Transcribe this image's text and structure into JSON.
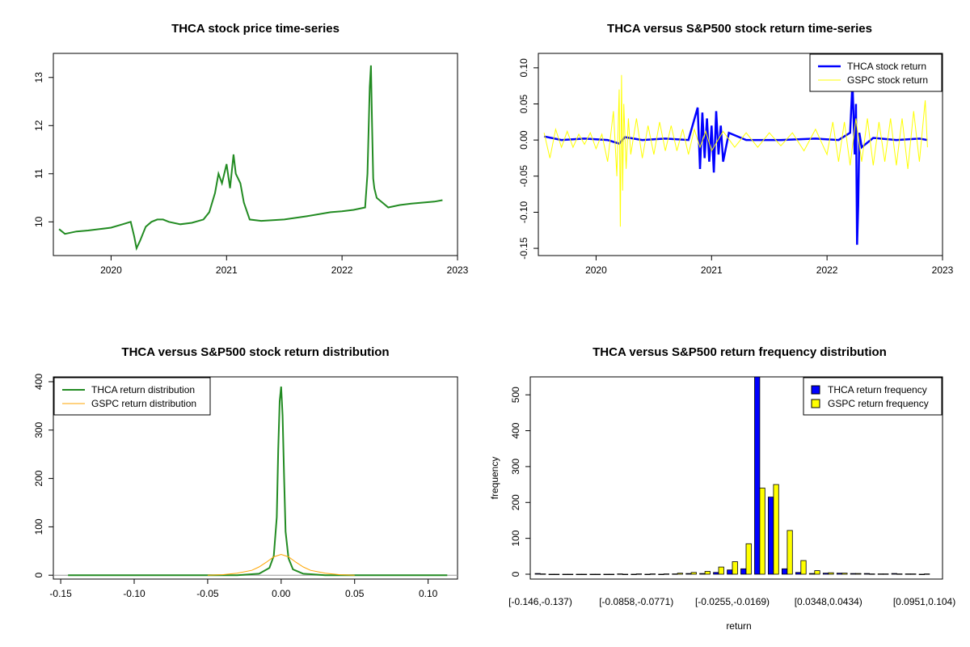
{
  "chart_data": [
    {
      "type": "line",
      "title": "THCA stock price time-series",
      "xlabel": "",
      "ylabel": "",
      "x_ticks": [
        "2020",
        "2021",
        "2022",
        "2023"
      ],
      "y_ticks": [
        "10",
        "11",
        "12",
        "13"
      ],
      "xlim": [
        2019.5,
        2023.0
      ],
      "ylim": [
        9.3,
        13.5
      ],
      "series": [
        {
          "color": "#228B22",
          "x": [
            2019.55,
            2019.6,
            2019.7,
            2019.8,
            2019.9,
            2020.0,
            2020.1,
            2020.17,
            2020.2,
            2020.22,
            2020.25,
            2020.3,
            2020.35,
            2020.4,
            2020.45,
            2020.5,
            2020.6,
            2020.7,
            2020.8,
            2020.85,
            2020.9,
            2020.93,
            2020.96,
            2021.0,
            2021.03,
            2021.06,
            2021.08,
            2021.12,
            2021.15,
            2021.2,
            2021.3,
            2021.5,
            2021.7,
            2021.9,
            2022.0,
            2022.1,
            2022.2,
            2022.22,
            2022.24,
            2022.25,
            2022.26,
            2022.27,
            2022.28,
            2022.3,
            2022.35,
            2022.4,
            2022.5,
            2022.6,
            2022.7,
            2022.8,
            2022.87
          ],
          "y": [
            9.85,
            9.75,
            9.8,
            9.82,
            9.85,
            9.88,
            9.95,
            10.0,
            9.7,
            9.45,
            9.6,
            9.9,
            10.0,
            10.05,
            10.05,
            10.0,
            9.95,
            9.98,
            10.05,
            10.2,
            10.6,
            11.0,
            10.8,
            11.2,
            10.7,
            11.4,
            11.0,
            10.8,
            10.4,
            10.05,
            10.02,
            10.05,
            10.12,
            10.2,
            10.22,
            10.25,
            10.3,
            11.0,
            12.8,
            13.25,
            12.0,
            10.9,
            10.7,
            10.5,
            10.4,
            10.3,
            10.35,
            10.38,
            10.4,
            10.42,
            10.45
          ]
        }
      ]
    },
    {
      "type": "line",
      "title": "THCA versus S&P500 stock return time-series",
      "xlabel": "",
      "ylabel": "",
      "x_ticks": [
        "2020",
        "2021",
        "2022",
        "2023"
      ],
      "y_ticks": [
        "-0.15",
        "-0.10",
        "-0.05",
        "0.00",
        "0.05",
        "0.10"
      ],
      "xlim": [
        2019.5,
        2023.0
      ],
      "ylim": [
        -0.16,
        0.12
      ],
      "legend_position": "top-right",
      "series": [
        {
          "name": "THCA stock return",
          "color": "#0000FF",
          "x": [
            2019.55,
            2019.7,
            2019.9,
            2020.1,
            2020.2,
            2020.25,
            2020.4,
            2020.6,
            2020.8,
            2020.88,
            2020.9,
            2020.92,
            2020.94,
            2020.96,
            2020.98,
            2021.0,
            2021.02,
            2021.04,
            2021.06,
            2021.08,
            2021.1,
            2021.15,
            2021.3,
            2021.6,
            2021.9,
            2022.1,
            2022.2,
            2022.22,
            2022.24,
            2022.25,
            2022.26,
            2022.27,
            2022.28,
            2022.3,
            2022.4,
            2022.6,
            2022.8,
            2022.87
          ],
          "y": [
            0.005,
            0.0,
            0.002,
            0.0,
            -0.005,
            0.004,
            0.0,
            0.002,
            0.0,
            0.045,
            -0.04,
            0.038,
            -0.025,
            0.03,
            -0.03,
            0.02,
            -0.045,
            0.04,
            -0.02,
            0.02,
            -0.03,
            0.01,
            0.0,
            0.0,
            0.002,
            0.0,
            0.01,
            0.08,
            -0.02,
            0.05,
            -0.145,
            -0.09,
            0.01,
            -0.01,
            0.003,
            0.0,
            0.002,
            0.0
          ]
        },
        {
          "name": "GSPC stock return",
          "color": "#FFFF00",
          "x": [
            2019.55,
            2019.6,
            2019.65,
            2019.7,
            2019.75,
            2019.8,
            2019.85,
            2019.9,
            2019.95,
            2020.0,
            2020.05,
            2020.1,
            2020.15,
            2020.18,
            2020.2,
            2020.21,
            2020.22,
            2020.23,
            2020.24,
            2020.26,
            2020.28,
            2020.3,
            2020.35,
            2020.4,
            2020.45,
            2020.5,
            2020.55,
            2020.6,
            2020.65,
            2020.7,
            2020.75,
            2020.8,
            2020.85,
            2020.9,
            2020.95,
            2021.0,
            2021.1,
            2021.2,
            2021.3,
            2021.4,
            2021.5,
            2021.6,
            2021.7,
            2021.8,
            2021.9,
            2022.0,
            2022.05,
            2022.1,
            2022.15,
            2022.2,
            2022.25,
            2022.3,
            2022.35,
            2022.4,
            2022.45,
            2022.5,
            2022.55,
            2022.6,
            2022.65,
            2022.7,
            2022.75,
            2022.8,
            2022.85,
            2022.87
          ],
          "y": [
            0.01,
            -0.025,
            0.015,
            -0.01,
            0.012,
            -0.01,
            0.008,
            -0.006,
            0.01,
            -0.012,
            0.008,
            -0.03,
            0.04,
            -0.05,
            0.07,
            -0.12,
            0.09,
            -0.07,
            0.05,
            -0.04,
            0.03,
            -0.02,
            0.03,
            -0.025,
            0.02,
            -0.02,
            0.025,
            -0.015,
            0.02,
            -0.015,
            0.015,
            -0.02,
            0.015,
            -0.01,
            0.012,
            -0.015,
            0.012,
            -0.01,
            0.01,
            -0.01,
            0.01,
            -0.008,
            0.01,
            -0.015,
            0.015,
            -0.02,
            0.025,
            -0.03,
            0.025,
            -0.035,
            0.03,
            -0.03,
            0.03,
            -0.035,
            0.025,
            -0.03,
            0.03,
            -0.035,
            0.03,
            -0.04,
            0.04,
            -0.03,
            0.055,
            -0.01
          ]
        }
      ]
    },
    {
      "type": "line",
      "title": "THCA versus S&P500 stock return distribution",
      "xlabel": "",
      "ylabel": "",
      "x_ticks": [
        "-0.15",
        "-0.10",
        "-0.05",
        "0.00",
        "0.05",
        "0.10"
      ],
      "y_ticks": [
        "0",
        "100",
        "200",
        "300",
        "400"
      ],
      "xlim": [
        -0.155,
        0.12
      ],
      "ylim": [
        -8,
        410
      ],
      "legend_position": "top-left",
      "series": [
        {
          "name": "THCA return distribution",
          "color": "#228B22",
          "x": [
            -0.145,
            -0.1,
            -0.05,
            -0.03,
            -0.015,
            -0.008,
            -0.005,
            -0.003,
            -0.002,
            -0.001,
            0.0,
            0.001,
            0.002,
            0.003,
            0.005,
            0.008,
            0.015,
            0.03,
            0.05,
            0.1,
            0.113
          ],
          "y": [
            0,
            0,
            0,
            0,
            3,
            15,
            40,
            120,
            260,
            360,
            390,
            330,
            200,
            90,
            35,
            12,
            3,
            0,
            0,
            0,
            0
          ]
        },
        {
          "name": "GSPC return distribution",
          "color": "#FFA500",
          "x": [
            -0.05,
            -0.04,
            -0.03,
            -0.02,
            -0.015,
            -0.01,
            -0.005,
            0.0,
            0.005,
            0.01,
            0.015,
            0.02,
            0.03,
            0.04,
            0.05
          ],
          "y": [
            0,
            1,
            4,
            10,
            17,
            27,
            38,
            43,
            38,
            27,
            17,
            10,
            4,
            1,
            0
          ]
        }
      ]
    },
    {
      "type": "bar",
      "title": "THCA versus S&P500 return frequency distribution",
      "xlabel": "return",
      "ylabel": "frequency",
      "y_ticks": [
        "0",
        "100",
        "200",
        "300",
        "400",
        "500"
      ],
      "ylim": [
        0,
        550
      ],
      "legend_position": "top-right",
      "categories": [
        "[-0.146,-0.137)",
        "[-0.137,-0.129)",
        "[-0.129,-0.12)",
        "[-0.12,-0.111)",
        "[-0.111,-0.103)",
        "[-0.103,-0.0944)",
        "[-0.0944,-0.0858)",
        "[-0.0858,-0.0771)",
        "[-0.0771,-0.0685)",
        "[-0.0685,-0.0599)",
        "[-0.0599,-0.0513)",
        "[-0.0513,-0.0427)",
        "[-0.0427,-0.0341)",
        "[-0.0341,-0.0255)",
        "[-0.0255,-0.0169)",
        "[-0.0169,-0.00826)",
        "[-0.00826,0.000349)",
        "[0.000349,0.00896)",
        "[0.00896,0.0176)",
        "[0.0176,0.0262)",
        "[0.0262,0.0348)",
        "[0.0348,0.0434)",
        "[0.0434,0.052)",
        "[0.052,0.0606)",
        "[0.0606,0.0692)",
        "[0.0692,0.0778)",
        "[0.0778,0.0865)",
        "[0.0865,0.0951)",
        "[0.0951,0.104)"
      ],
      "category_labels_shown": [
        "[-0.146,-0.137)",
        "[-0.0858,-0.0771)",
        "[-0.0255,-0.0169)",
        "[0.0348,0.0434)",
        "[0.0951,0.104)"
      ],
      "category_labels_shown_index": [
        0,
        7,
        14,
        21,
        28
      ],
      "series": [
        {
          "name": "THCA return frequency",
          "color": "#0000FF",
          "values": [
            2,
            0,
            0,
            0,
            0,
            0,
            1,
            0,
            0,
            0,
            1,
            2,
            2,
            5,
            12,
            15,
            550,
            215,
            15,
            5,
            2,
            3,
            3,
            2,
            2,
            1,
            2,
            1,
            0
          ]
        },
        {
          "name": "GSPC return frequency",
          "color": "#FFFF00",
          "values": [
            1,
            0,
            0,
            0,
            0,
            0,
            0,
            1,
            1,
            1,
            3,
            5,
            8,
            20,
            35,
            85,
            240,
            250,
            122,
            38,
            10,
            4,
            3,
            2,
            1,
            1,
            1,
            1,
            1
          ]
        }
      ]
    }
  ]
}
